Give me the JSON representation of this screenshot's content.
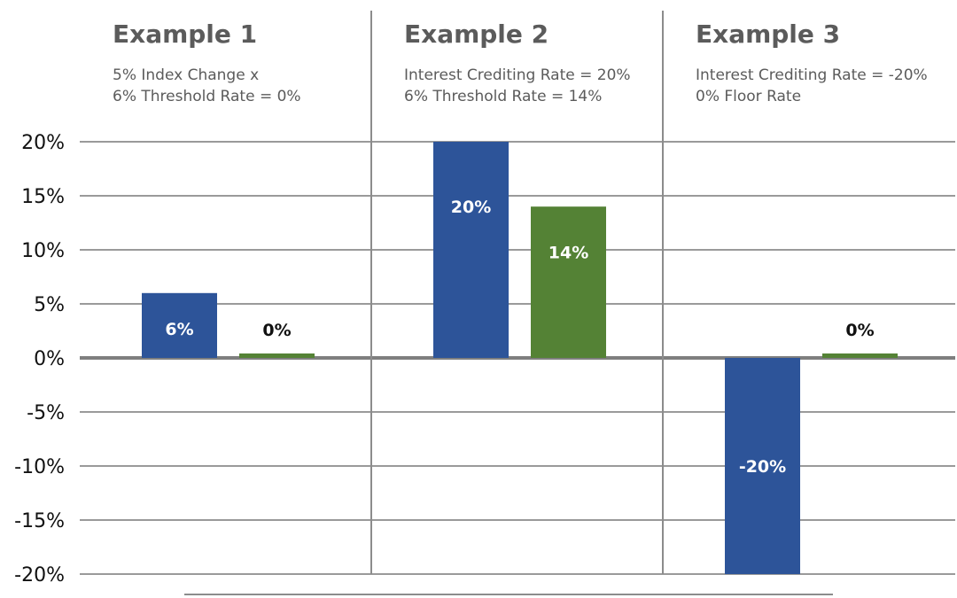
{
  "chart_data": {
    "type": "bar",
    "panels": [
      {
        "heading": "Example 1",
        "lines": [
          "5% Index Change x",
          "6% Threshold Rate = 0%"
        ]
      },
      {
        "heading": "Example 2",
        "lines": [
          "Interest Crediting Rate = 20%",
          "6% Threshold Rate = 14%"
        ]
      },
      {
        "heading": "Example 3",
        "lines": [
          "Interest Crediting Rate = -20%",
          "0% Floor Rate"
        ]
      }
    ],
    "series": [
      {
        "values": [
          6,
          20,
          -20
        ],
        "labels": [
          "6%",
          "20%",
          "-20%"
        ],
        "color": "#2d5499"
      },
      {
        "values": [
          0,
          14,
          0
        ],
        "labels": [
          "0%",
          "14%",
          "0%"
        ],
        "color": "#548235"
      }
    ],
    "yticks": [
      "20%",
      "15%",
      "10%",
      "5%",
      "0%",
      "-5%",
      "-10%",
      "-15%",
      "-20%"
    ],
    "ylim": [
      -20,
      20
    ],
    "grid": true,
    "colors": {
      "grid": "#9a9a9a",
      "zero_line": "#7f7f7f",
      "divider": "#8c8c8c",
      "text": "#5b5b5b",
      "label_inside": "#ffffff",
      "label_outside": "#111111"
    }
  }
}
